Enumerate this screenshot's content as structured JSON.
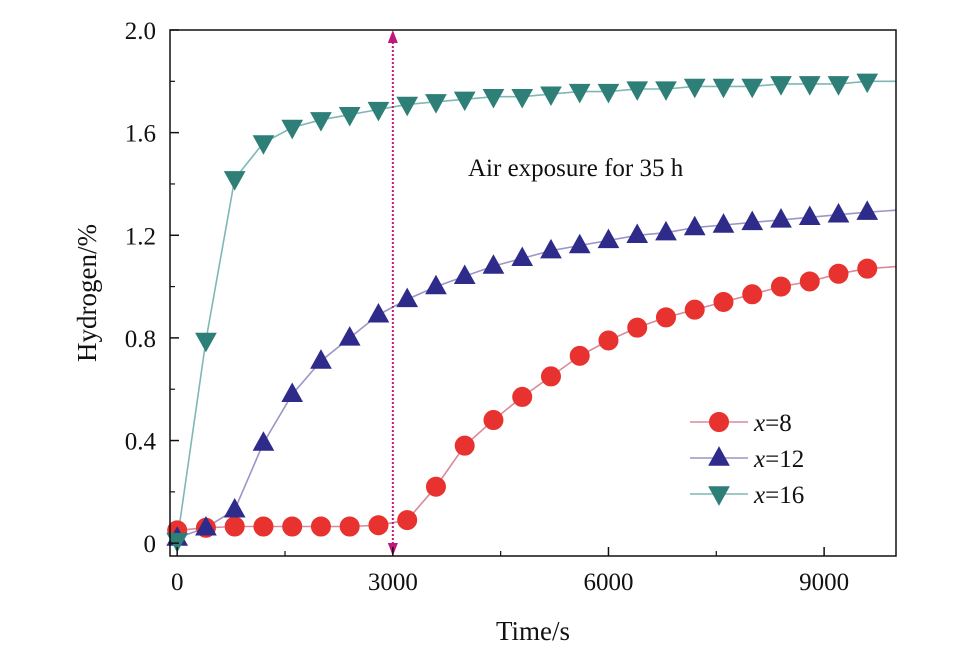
{
  "chart_data": {
    "type": "line",
    "xlabel": "Time/s",
    "ylabel": "Hydrogen/%",
    "xlim": [
      -100,
      10000
    ],
    "ylim": [
      -0.05,
      2.0
    ],
    "xticks": [
      0,
      3000,
      6000,
      9000
    ],
    "xtick_labels": [
      "0",
      "3000",
      "6000",
      "9000"
    ],
    "yticks": [
      0,
      0.4,
      0.8,
      1.2,
      1.6,
      2.0
    ],
    "ytick_labels": [
      "0",
      "0.4",
      "0.8",
      "1.2",
      "1.6",
      "2.0"
    ],
    "grid": false,
    "legend_position": "lower-right",
    "annotation": {
      "text": "Air exposure for 35 h",
      "x": 3000,
      "color": "#c0177a"
    },
    "series": [
      {
        "name": "x=8",
        "legend_var": "x",
        "legend_val": "=8",
        "marker": "circle",
        "line_color": "#d98a9a",
        "marker_color": "#e8322f",
        "x": [
          0,
          400,
          800,
          1200,
          1600,
          2000,
          2400,
          2800,
          3200,
          3600,
          4000,
          4400,
          4800,
          5200,
          5600,
          6000,
          6400,
          6800,
          7200,
          7600,
          8000,
          8400,
          8800,
          9200,
          9600
        ],
        "values": [
          0.05,
          0.06,
          0.065,
          0.065,
          0.065,
          0.065,
          0.065,
          0.07,
          0.09,
          0.22,
          0.38,
          0.48,
          0.57,
          0.65,
          0.73,
          0.79,
          0.84,
          0.88,
          0.91,
          0.94,
          0.97,
          1.0,
          1.02,
          1.05,
          1.07
        ]
      },
      {
        "name": "x=12",
        "legend_var": "x",
        "legend_val": "=12",
        "marker": "triangle-up",
        "line_color": "#9a96c8",
        "marker_color": "#2e2b8a",
        "x": [
          0,
          400,
          800,
          1200,
          1600,
          2000,
          2400,
          2800,
          3200,
          3600,
          4000,
          4400,
          4800,
          5200,
          5600,
          6000,
          6400,
          6800,
          7200,
          7600,
          8000,
          8400,
          8800,
          9200,
          9600
        ],
        "values": [
          0.02,
          0.06,
          0.13,
          0.39,
          0.58,
          0.71,
          0.8,
          0.89,
          0.95,
          1.0,
          1.04,
          1.08,
          1.11,
          1.14,
          1.16,
          1.18,
          1.2,
          1.21,
          1.23,
          1.24,
          1.25,
          1.26,
          1.27,
          1.28,
          1.29
        ]
      },
      {
        "name": "x=16",
        "legend_var": "x",
        "legend_val": "=16",
        "marker": "triangle-down",
        "line_color": "#7fb8b3",
        "marker_color": "#2e7f78",
        "x": [
          0,
          400,
          800,
          1200,
          1600,
          2000,
          2400,
          2800,
          3200,
          3600,
          4000,
          4400,
          4800,
          5200,
          5600,
          6000,
          6400,
          6800,
          7200,
          7600,
          8000,
          8400,
          8800,
          9200,
          9600
        ],
        "values": [
          0.01,
          0.79,
          1.42,
          1.56,
          1.62,
          1.65,
          1.67,
          1.69,
          1.71,
          1.72,
          1.73,
          1.74,
          1.74,
          1.75,
          1.76,
          1.76,
          1.77,
          1.77,
          1.78,
          1.78,
          1.78,
          1.79,
          1.79,
          1.79,
          1.8
        ]
      }
    ]
  }
}
